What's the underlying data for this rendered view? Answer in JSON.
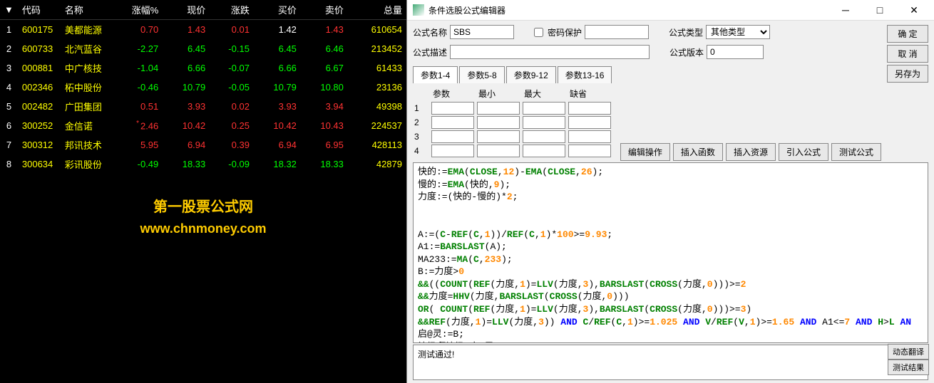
{
  "headers": [
    "",
    "代码",
    "名称",
    "涨幅%",
    "现价",
    "涨跌",
    "买价",
    "卖价",
    "总量"
  ],
  "rows": [
    {
      "n": "1",
      "code": "600175",
      "name": "美都能源",
      "pct": "0.70",
      "price": "1.43",
      "chg": "0.01",
      "bid": "1.42",
      "ask": "1.43",
      "vol": "610654",
      "dir": "pos",
      "bidcls": "white"
    },
    {
      "n": "2",
      "code": "600733",
      "name": "北汽蓝谷",
      "pct": "-2.27",
      "price": "6.45",
      "chg": "-0.15",
      "bid": "6.45",
      "ask": "6.46",
      "vol": "213452",
      "dir": "neg",
      "bidcls": "neg"
    },
    {
      "n": "3",
      "code": "000881",
      "name": "中广核技",
      "pct": "-1.04",
      "price": "6.66",
      "chg": "-0.07",
      "bid": "6.66",
      "ask": "6.67",
      "vol": "61433",
      "dir": "neg",
      "bidcls": "neg"
    },
    {
      "n": "4",
      "code": "002346",
      "name": "柘中股份",
      "pct": "-0.46",
      "price": "10.79",
      "chg": "-0.05",
      "bid": "10.79",
      "ask": "10.80",
      "vol": "23136",
      "dir": "neg",
      "bidcls": "neg"
    },
    {
      "n": "5",
      "code": "002482",
      "name": "广田集团",
      "pct": "0.51",
      "price": "3.93",
      "chg": "0.02",
      "bid": "3.93",
      "ask": "3.94",
      "vol": "49398",
      "dir": "pos",
      "bidcls": "pos"
    },
    {
      "n": "6",
      "code": "300252",
      "name": "金信诺",
      "pct": "2.46",
      "price": "10.42",
      "chg": "0.25",
      "bid": "10.42",
      "ask": "10.43",
      "vol": "224537",
      "dir": "pos",
      "bidcls": "pos",
      "star": true
    },
    {
      "n": "7",
      "code": "300312",
      "name": "邦讯技术",
      "pct": "5.95",
      "price": "6.94",
      "chg": "0.39",
      "bid": "6.94",
      "ask": "6.95",
      "vol": "428113",
      "dir": "pos",
      "bidcls": "pos"
    },
    {
      "n": "8",
      "code": "300634",
      "name": "彩讯股份",
      "pct": "-0.49",
      "price": "18.33",
      "chg": "-0.09",
      "bid": "18.32",
      "ask": "18.33",
      "vol": "42879",
      "dir": "neg",
      "bidcls": "neg"
    }
  ],
  "watermark": {
    "line1": "第一股票公式网",
    "line2": "www.chnmoney.com"
  },
  "editor": {
    "title": "条件选股公式编辑器",
    "labels": {
      "name": "公式名称",
      "pwd": "密码保护",
      "type": "公式类型",
      "desc": "公式描述",
      "ver": "公式版本"
    },
    "name_value": "SBS",
    "type_value": "其他类型",
    "ver_value": "0",
    "btns": {
      "ok": "确  定",
      "cancel": "取  消",
      "saveas": "另存为",
      "edit": "编辑操作",
      "insfn": "插入函数",
      "insres": "插入资源",
      "import": "引入公式",
      "test": "测试公式",
      "trans": "动态翻译",
      "result": "测试结果"
    },
    "tabs": [
      "参数1-4",
      "参数5-8",
      "参数9-12",
      "参数13-16"
    ],
    "param_headers": [
      "参数",
      "最小",
      "最大",
      "缺省"
    ],
    "param_rows": [
      "1",
      "2",
      "3",
      "4"
    ],
    "test_result": "测试通过!"
  }
}
